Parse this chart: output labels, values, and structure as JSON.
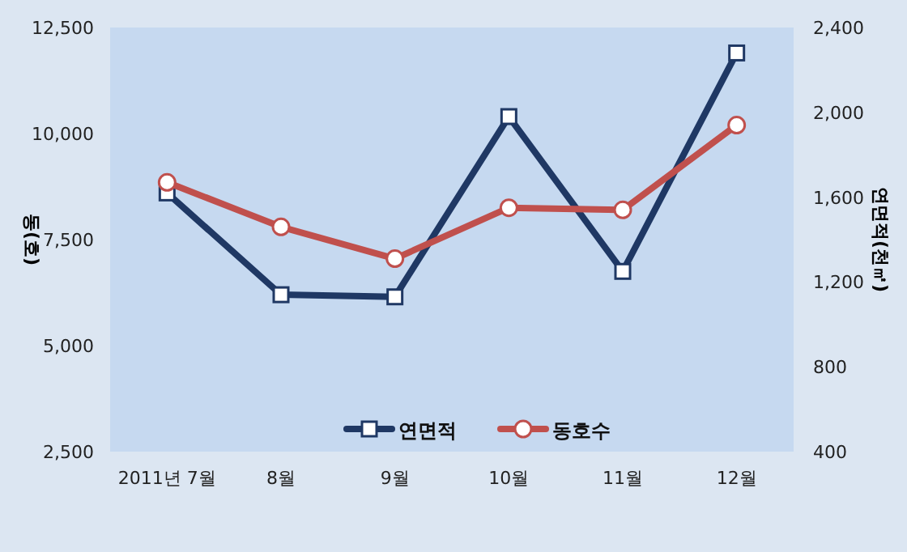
{
  "chart_data": {
    "type": "line",
    "categories": [
      "2011년 7월",
      "8월",
      "9월",
      "10월",
      "11월",
      "12월"
    ],
    "ylabel": "동(호)",
    "y2label": "연면적(천㎡)",
    "ylim": [
      2500,
      12500
    ],
    "yticks": [
      {
        "value": 2500,
        "label": "2,500"
      },
      {
        "value": 5000,
        "label": "5,000"
      },
      {
        "value": 7500,
        "label": "7,500"
      },
      {
        "value": 10000,
        "label": "10,000"
      },
      {
        "value": 12500,
        "label": "12,500"
      }
    ],
    "y2lim": [
      400,
      2400
    ],
    "y2ticks": [
      400,
      800,
      {
        "value": 1200,
        "label": "1,200"
      },
      {
        "value": 1600,
        "label": "1,600"
      },
      {
        "value": 2000,
        "label": "2,000"
      },
      {
        "value": 2400,
        "label": "2,400"
      }
    ],
    "series": [
      {
        "name": "연면적",
        "color": "#1f3864",
        "axis": "y2",
        "marker": "square",
        "values": [
          1620,
          1140,
          1130,
          1980,
          1250,
          2280
        ]
      },
      {
        "name": "동호수",
        "color": "#c0504d",
        "axis": "y",
        "marker": "circle",
        "values": [
          8850,
          7800,
          7050,
          8250,
          8200,
          10200
        ]
      }
    ],
    "grid": false,
    "legend": "bottom",
    "line_style": "solid"
  }
}
